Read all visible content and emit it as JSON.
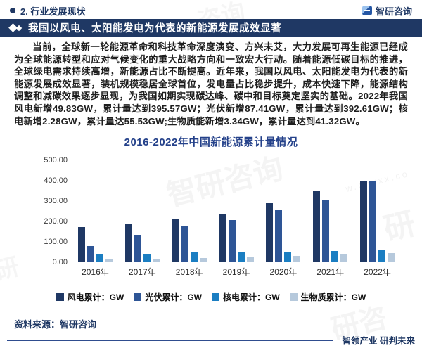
{
  "header": {
    "section_label": "2. 行业发展现状",
    "brand": "智研咨询"
  },
  "banner": {
    "title": "我国以风电、太阳能发电为代表的新能源发展成效显著"
  },
  "body": {
    "paragraph": "当前，全球新一轮能源革命和科技革命深度演变、方兴未艾，大力发展可再生能源已经成为全球能源转型和应对气候变化的重大战略方向和一致宏大行动。随着能源低碳目标的推进，全球绿电需求持续高增，新能源占比不断提高。近年来，我国以风电、太阳能发电为代表的新能源发展成效显著，装机规模稳居全球首位，发电量占比稳步提升，成本快速下降，能源结构调整和减碳效果逐步显现，为我国如期实现碳达峰、碳中和目标奠定坚实的基础。2022年我国风电新增49.83GW，累计量达到395.57GW；光伏新增87.41GW，累计量达到392.61GW；核电新增2.28GW，累计量达55.53GW;生物质能新增3.34GW，累计量达到41.32GW。"
  },
  "chart_data": {
    "type": "bar",
    "title": "2016-2022年中国新能源累计量情况",
    "categories": [
      "2016年",
      "2017年",
      "2018年",
      "2019年",
      "2020年",
      "2021年",
      "2022年"
    ],
    "series": [
      {
        "name": "风电累计：GW",
        "color": "#1f3864",
        "values": [
          168.7,
          188.2,
          209.5,
          236.3,
          288.3,
          345.74,
          395.57
        ]
      },
      {
        "name": "光伏累计：GW",
        "color": "#2e5596",
        "values": [
          77.42,
          130.25,
          174.46,
          204.18,
          253.43,
          305.2,
          392.61
        ]
      },
      {
        "name": "核电累计：GW",
        "color": "#1b7ec2",
        "values": [
          33.64,
          35.82,
          44.66,
          48.74,
          49.89,
          53.25,
          55.53
        ]
      },
      {
        "name": "生物质累计：GW",
        "color": "#b6c9dc",
        "values": [
          12.14,
          14.76,
          17.81,
          23.61,
          29.52,
          37.98,
          41.32
        ]
      }
    ],
    "ylim": [
      0,
      500
    ],
    "yticks": [
      "500.00",
      "400.00",
      "300.00",
      "200.00",
      "100.00",
      "0.00"
    ],
    "grid": false,
    "legend_position": "bottom"
  },
  "footer": {
    "source_label": "资料来源：智研咨询",
    "slogan": "智领产业 研判未来"
  },
  "watermarks": {
    "a": "咨询",
    "b": "智研咨询",
    "c": "w.chyxx.co",
    "d": "研",
    "e": "研咨",
    "f": "研"
  }
}
